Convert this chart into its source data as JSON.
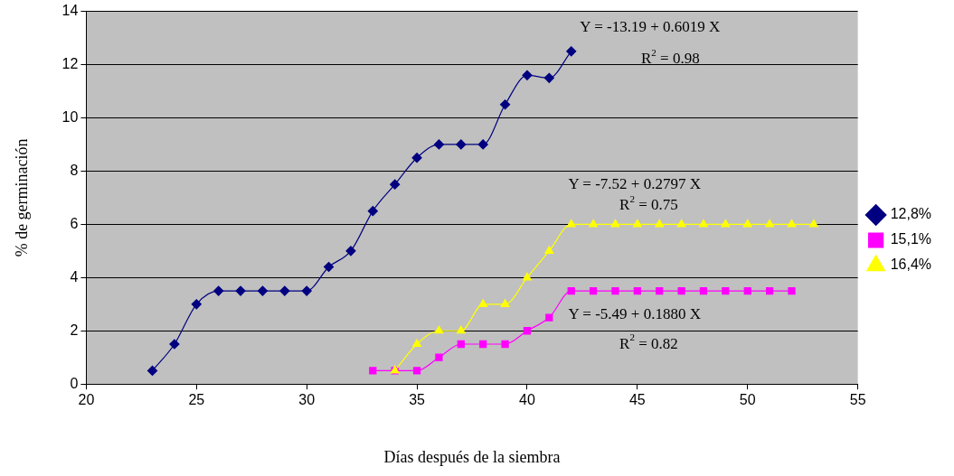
{
  "chart_data": {
    "type": "line",
    "xlabel": "Días después de la siembra",
    "ylabel": "% de germinación",
    "xlim": [
      20,
      55
    ],
    "xticks": [
      20,
      25,
      30,
      35,
      40,
      45,
      50,
      55
    ],
    "ylim": [
      0,
      14
    ],
    "yticks": [
      0,
      2,
      4,
      6,
      8,
      10,
      12,
      14
    ],
    "grid": "y",
    "legend": "right",
    "line_style": "solid",
    "series": [
      {
        "name": "12,8%",
        "color": "#000080",
        "marker": "diamond",
        "x": [
          23,
          24,
          25,
          26,
          27,
          28,
          29,
          30,
          31,
          32,
          33,
          34,
          35,
          36,
          37,
          38,
          39,
          40,
          41,
          42
        ],
        "values": [
          0.5,
          1.5,
          3,
          3.5,
          3.5,
          3.5,
          3.5,
          3.5,
          4.4,
          5,
          6.5,
          7.5,
          8.5,
          9,
          9,
          9,
          10.5,
          11.6,
          11.5,
          12.5
        ]
      },
      {
        "name": "15,1%",
        "color": "#ff00ff",
        "marker": "square",
        "x": [
          33,
          34,
          35,
          36,
          37,
          38,
          39,
          40,
          41,
          42,
          43,
          44,
          45,
          46,
          47,
          48,
          49,
          50,
          51,
          52
        ],
        "values": [
          0.5,
          0.5,
          0.5,
          1,
          1.5,
          1.5,
          1.5,
          2,
          2.5,
          3.5,
          3.5,
          3.5,
          3.5,
          3.5,
          3.5,
          3.5,
          3.5,
          3.5,
          3.5,
          3.5
        ]
      },
      {
        "name": "16,4%",
        "color": "#ffff00",
        "marker": "triangle",
        "x": [
          34,
          35,
          36,
          37,
          38,
          39,
          40,
          41,
          42,
          43,
          44,
          45,
          46,
          47,
          48,
          49,
          50,
          51,
          52,
          53
        ],
        "values": [
          0.5,
          1.5,
          2,
          2,
          3,
          3,
          4,
          5,
          6,
          6,
          6,
          6,
          6,
          6,
          6,
          6,
          6,
          6,
          6,
          6
        ]
      }
    ],
    "annotations": [
      "Y = -13.19 + 0.6019 X",
      "R$^{2}$ = 0.98",
      "Y = -7.52 + 0.2797 X",
      "R$^{2}$ = 0.75",
      "Y = -5.49 + 0.1880 X",
      "R$^{2}$ = 0.82"
    ]
  }
}
